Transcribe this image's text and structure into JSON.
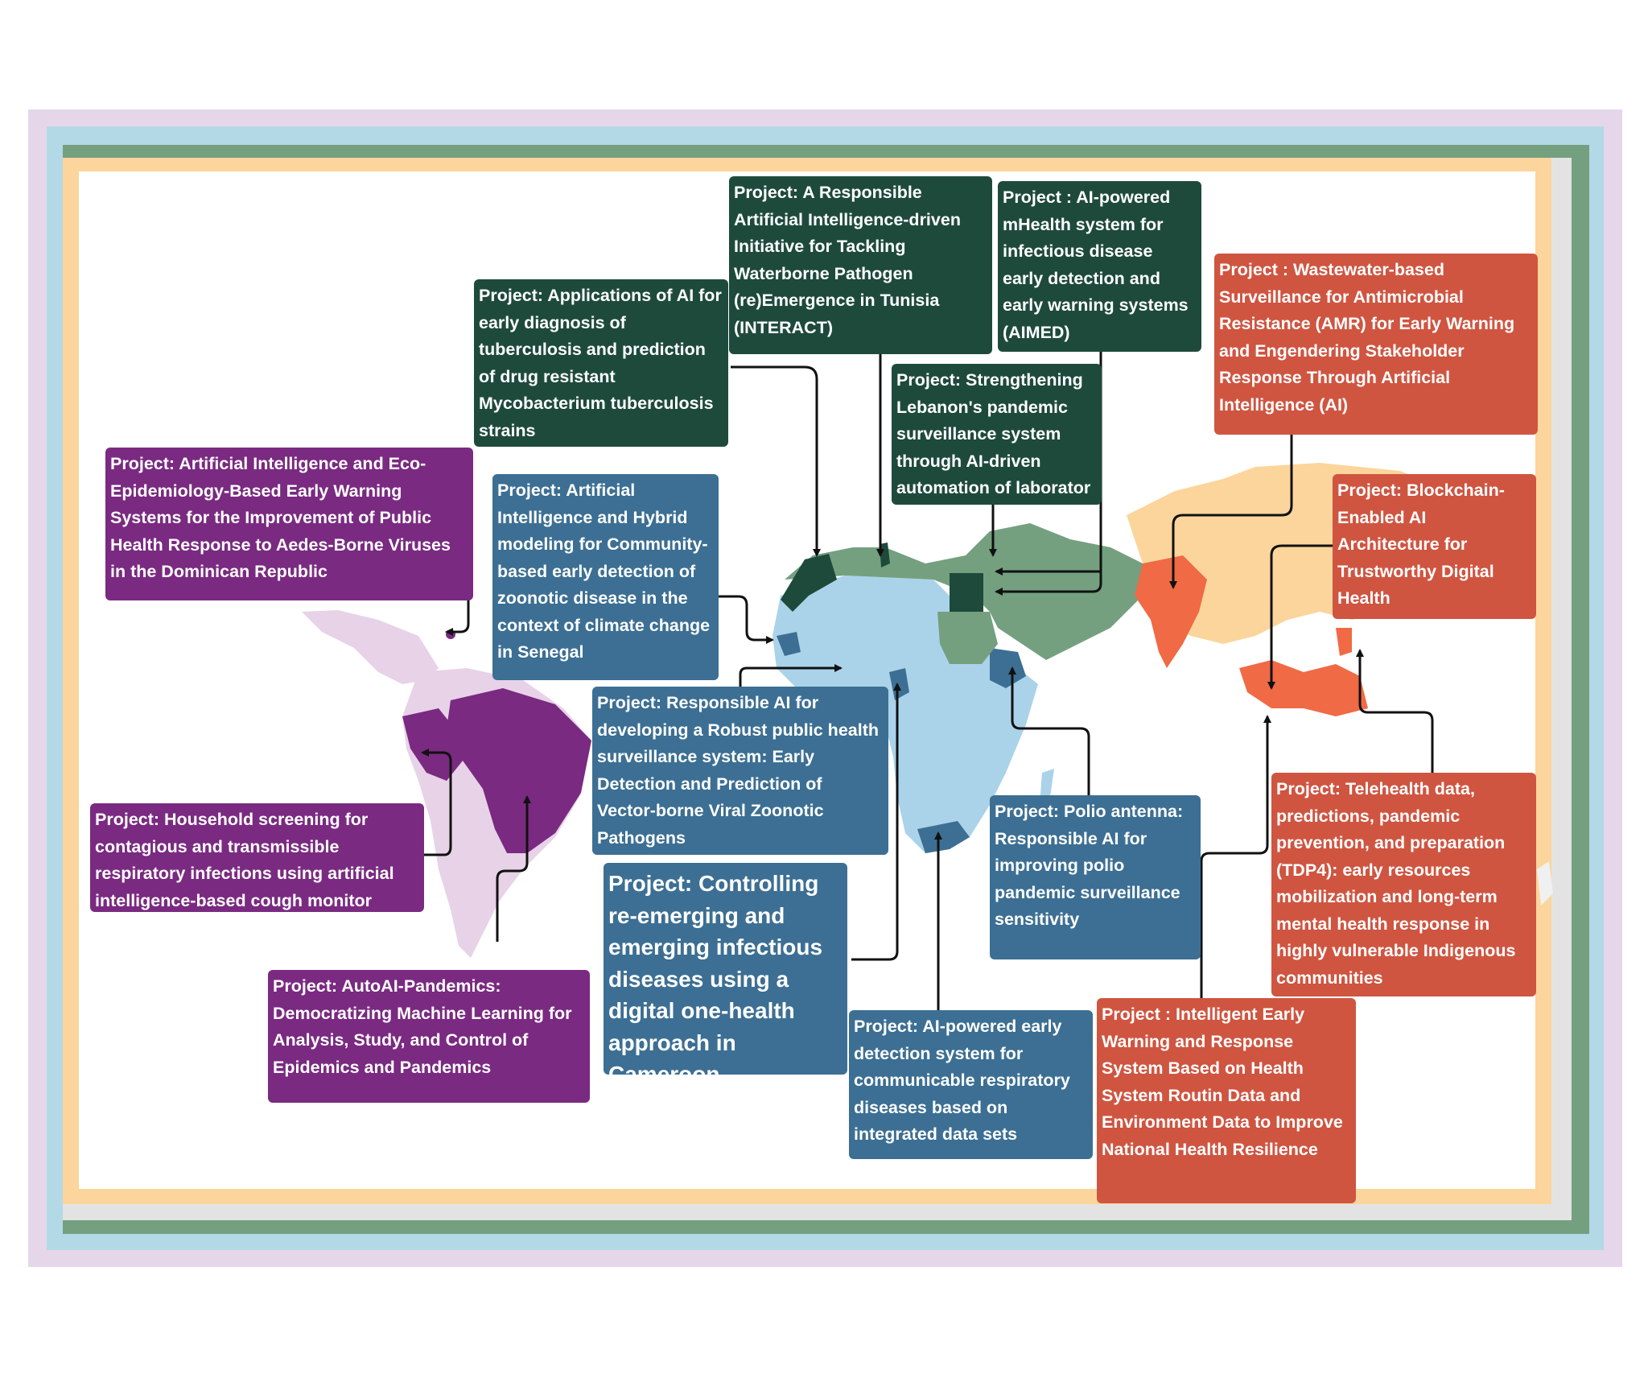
{
  "colors": {
    "dark_green": "#1e4a3c",
    "blue": "#3c6f93",
    "purple": "#7a2a81",
    "red": "#cf5541",
    "africa_light_blue": "#aad3ea",
    "mena_green": "#74a080",
    "asia_peach": "#fbd59b",
    "americas_light_purple": "#e7d2e8",
    "highlight_orange": "#ef6a45"
  },
  "projects": {
    "tb": "Project: Applications of AI for early diagnosis of tuberculosis and prediction of drug resistant Mycobacterium tuberculosis strains",
    "interact": "Project: A Responsible Artificial Intelligence-driven Initiative for Tackling Waterborne Pathogen (re)Emergence in Tunisia (INTERACT)",
    "aimed": "Project : AI-powered mHealth system for infectious disease early detection and early warning systems (AIMED)",
    "lebanon": "Project: Strengthening Lebanon's pandemic surveillance system through AI-driven automation of laborator",
    "wastewater": "Project : Wastewater-based Surveillance for Antimicrobial Resistance (AMR) for Early Warning and Engendering Stakeholder Response Through Artificial Intelligence (AI)",
    "aedes": "Project: Artificial Intelligence and Eco-Epidemiology-Based Early Warning Systems for the Improvement of Public Health Response to Aedes-Borne Viruses in the Dominican Republic",
    "senegal": "Project: Artificial Intelligence and Hybrid modeling for Community-based early detection of zoonotic disease in the context of climate change in Senegal",
    "blockchain": "Project: Blockchain-Enabled AI Architecture for Trustworthy Digital Health",
    "vector": "Project: Responsible AI for developing a Robust public health surveillance system: Early Detection and Prediction of Vector-borne Viral Zoonotic Pathogens",
    "cough": "Project: Household screening for contagious and transmissible respiratory infections using artificial intelligence-based cough monitor",
    "polio": "Project: Polio antenna: Responsible AI for improving polio pandemic surveillance sensitivity",
    "telehealth": "Project: Telehealth data, predictions, pandemic prevention, and preparation (TDP4): early resources mobilization and long-term mental health response in highly vulnerable Indigenous communities",
    "cameroon": "Project: Controlling re-emerging and emerging infectious diseases using a digital one-health approach in Cameroon",
    "autoai": "Project: AutoAI-Pandemics: Democratizing Machine Learning for Analysis, Study, and Control of Epidemics and Pandemics",
    "respiratory": "Project: AI-powered early detection system for communicable respiratory diseases based on integrated data sets",
    "iewrs": "Project : Intelligent Early Warning and Response System Based on Health System Routin Data and Environment Data to Improve National Health Resilience"
  }
}
